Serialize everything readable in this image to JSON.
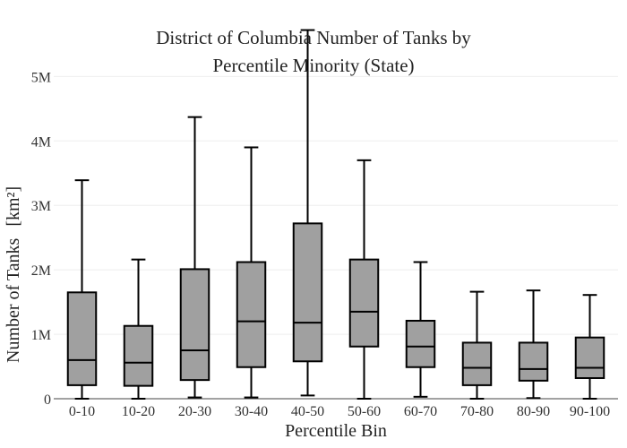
{
  "chart_data": {
    "type": "box",
    "title_lines": [
      "District of Columbia Number of Tanks by",
      "Percentile Minority (State)"
    ],
    "xlabel": "Percentile Bin",
    "ylabel": "Number of Tanks",
    "ylabel_unit": "[km²]",
    "ylim": [
      0,
      5700000
    ],
    "yticks": [
      {
        "value": 0,
        "label": "0"
      },
      {
        "value": 1000000,
        "label": "1M"
      },
      {
        "value": 2000000,
        "label": "2M"
      },
      {
        "value": 3000000,
        "label": "3M"
      },
      {
        "value": 4000000,
        "label": "4M"
      },
      {
        "value": 5000000,
        "label": "5M"
      }
    ],
    "grid": true,
    "box_fill": "#a0a0a0",
    "box_stroke": "#000000",
    "categories": [
      "0-10",
      "10-20",
      "20-30",
      "30-40",
      "40-50",
      "50-60",
      "60-70",
      "70-80",
      "80-90",
      "90-100"
    ],
    "boxes": [
      {
        "min": 0,
        "q1": 210000,
        "median": 600000,
        "q3": 1650000,
        "max": 3390000
      },
      {
        "min": 0,
        "q1": 200000,
        "median": 560000,
        "q3": 1130000,
        "max": 2160000
      },
      {
        "min": 20000,
        "q1": 290000,
        "median": 750000,
        "q3": 2010000,
        "max": 4370000
      },
      {
        "min": 20000,
        "q1": 490000,
        "median": 1200000,
        "q3": 2120000,
        "max": 3900000
      },
      {
        "min": 50000,
        "q1": 580000,
        "median": 1180000,
        "q3": 2720000,
        "max": 5720000
      },
      {
        "min": 0,
        "q1": 810000,
        "median": 1350000,
        "q3": 2160000,
        "max": 3700000
      },
      {
        "min": 30000,
        "q1": 490000,
        "median": 810000,
        "q3": 1210000,
        "max": 2120000
      },
      {
        "min": 0,
        "q1": 210000,
        "median": 480000,
        "q3": 870000,
        "max": 1660000
      },
      {
        "min": 10000,
        "q1": 280000,
        "median": 460000,
        "q3": 870000,
        "max": 1680000
      },
      {
        "min": 0,
        "q1": 320000,
        "median": 480000,
        "q3": 950000,
        "max": 1610000
      }
    ]
  }
}
